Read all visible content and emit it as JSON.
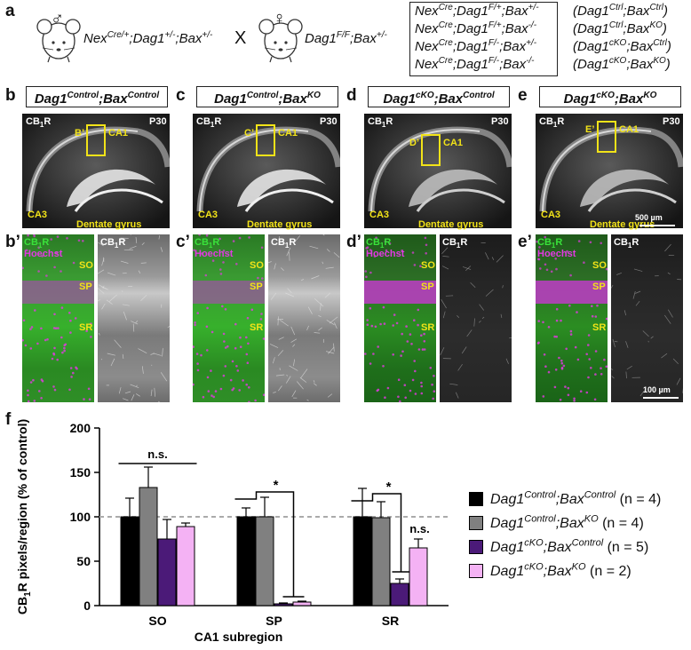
{
  "panel_a": {
    "label": "a",
    "male_genotype": "Nex",
    "male_sup1": "Cre/+",
    "male_mid": ";Dag1",
    "male_sup2": "+/-",
    "male_mid2": ";Bax",
    "male_sup3": "+/-",
    "cross": "X",
    "female_genotype": "Dag1",
    "female_sup1": "F/F",
    "female_mid": ";Bax",
    "female_sup2": "+/-",
    "male_symbol": "♂",
    "female_symbol": "♀",
    "offspring": [
      {
        "g": "Nex",
        "gs": "Cre",
        "d": ";Dag1",
        "ds": "F/+",
        "b": ";Bax",
        "bs": "+/-",
        "c": "(Dag1",
        "cs": "Ctrl",
        "cb": ";Bax",
        "cbs": "Ctrl",
        "ce": ")"
      },
      {
        "g": "Nex",
        "gs": "Cre",
        "d": ";Dag1",
        "ds": "F/+",
        "b": ";Bax",
        "bs": "-/-",
        "c": "(Dag1",
        "cs": "Ctrl",
        "cb": ";Bax",
        "cbs": "KO",
        "ce": ")"
      },
      {
        "g": "Nex",
        "gs": "Cre",
        "d": ";Dag1",
        "ds": "F/-",
        "b": ";Bax",
        "bs": "+/-",
        "c": "(Dag1",
        "cs": "cKO",
        "cb": ";Bax",
        "cbs": "Ctrl",
        "ce": ")"
      },
      {
        "g": "Nex",
        "gs": "Cre",
        "d": ";Dag1",
        "ds": "F/-",
        "b": ";Bax",
        "bs": "-/-",
        "c": "(Dag1",
        "cs": "cKO",
        "cb": ";Bax",
        "cbs": "KO",
        "ce": ")"
      }
    ]
  },
  "panels": [
    {
      "label": "b",
      "label2": "b’",
      "t1": "Dag1",
      "s1": "Control",
      "t2": ";Bax",
      "s2": "Control",
      "roi": "B’"
    },
    {
      "label": "c",
      "label2": "c’",
      "t1": "Dag1",
      "s1": "Control",
      "t2": ";Bax",
      "s2": "KO",
      "roi": "C’"
    },
    {
      "label": "d",
      "label2": "d’",
      "t1": "Dag1",
      "s1": "cKO",
      "t2": ";Bax",
      "s2": "Control",
      "roi": "D’"
    },
    {
      "label": "e",
      "label2": "e’",
      "t1": "Dag1",
      "s1": "cKO",
      "t2": ";Bax",
      "s2": "KO",
      "roi": "E’"
    }
  ],
  "image_labels": {
    "cb": "CB",
    "cb_sub": "1",
    "cb_r": "R",
    "age": "P30",
    "ca1": "CA1",
    "ca3": "CA3",
    "dg": "Dentate gyrus",
    "hoechst": "Hoechst",
    "so": "SO",
    "sp": "SP",
    "sr": "SR",
    "scale1": "500 µm",
    "scale2": "100 µm"
  },
  "panel_f": {
    "label": "f"
  },
  "chart_data": {
    "type": "bar",
    "categories": [
      "SO",
      "SP",
      "SR"
    ],
    "xlabel": "CA1 subregion",
    "ylabel": "CB1R pixels/region (% of control)",
    "ylim": [
      0,
      200
    ],
    "yticks": [
      "0",
      "50",
      "100",
      "150",
      "200"
    ],
    "reference_line": 100,
    "series": [
      {
        "name": "Dag1Control;BaxControl (n = 4)",
        "color": "#000000",
        "values": [
          100,
          100,
          100
        ],
        "errors": [
          21,
          10,
          32
        ]
      },
      {
        "name": "Dag1Control;BaxKO (n = 4)",
        "color": "#808080",
        "values": [
          133,
          100,
          99
        ],
        "errors": [
          23,
          22,
          18
        ]
      },
      {
        "name": "Dag1cKO;BaxControl (n = 5)",
        "color": "#4b1a78",
        "values": [
          75,
          2,
          25
        ],
        "errors": [
          22,
          1,
          5
        ]
      },
      {
        "name": "Dag1cKO;BaxKO (n = 2)",
        "color": "#f4b2f4",
        "values": [
          89,
          4,
          65
        ],
        "errors": [
          4,
          1,
          10
        ]
      }
    ],
    "annotations": [
      "n.s.",
      "*",
      "*",
      "n.s."
    ],
    "legend": [
      {
        "t1": "Dag1",
        "s1": "Control",
        "t2": ";Bax",
        "s2": "Control",
        "n": "(n = 4)",
        "color": "#000000"
      },
      {
        "t1": "Dag1",
        "s1": "Control",
        "t2": ";Bax",
        "s2": "KO",
        "n": "(n = 4)",
        "color": "#808080"
      },
      {
        "t1": "Dag1",
        "s1": "cKO",
        "t2": ";Bax",
        "s2": "Control",
        "n": "(n = 5)",
        "color": "#4b1a78"
      },
      {
        "t1": "Dag1",
        "s1": "cKO",
        "t2": ";Bax",
        "s2": "KO",
        "n": "(n = 2)",
        "color": "#f4b2f4"
      }
    ],
    "legend_position": "right",
    "grid": false
  }
}
